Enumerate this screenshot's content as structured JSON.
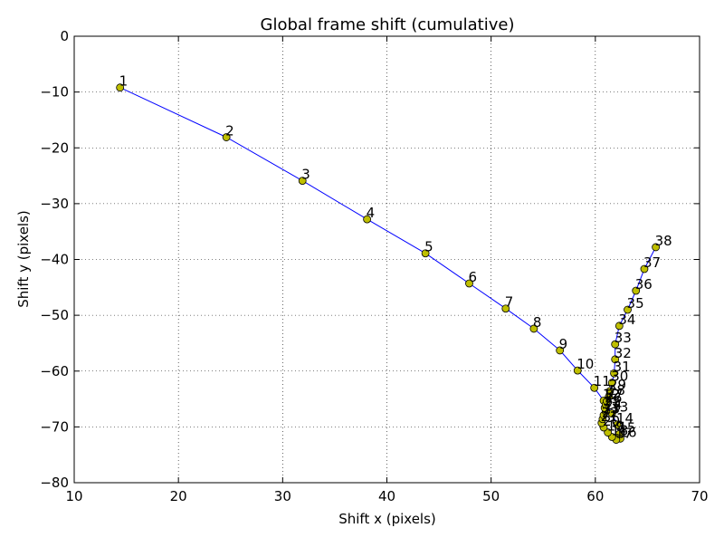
{
  "chart_data": {
    "type": "line",
    "title": "Global frame shift (cumulative)",
    "xlabel": "Shift x (pixels)",
    "ylabel": "Shift y (pixels)",
    "xlim": [
      10,
      70
    ],
    "ylim": [
      -80,
      0
    ],
    "xticks": [
      10,
      20,
      30,
      40,
      50,
      60,
      70
    ],
    "yticks": [
      0,
      -10,
      -20,
      -30,
      -40,
      -50,
      -60,
      -70,
      -80
    ],
    "grid": true,
    "line_color": "#0000ff",
    "marker_color": "#bfbf00",
    "points": [
      {
        "label": "1",
        "x": 14.4,
        "y": -9.2
      },
      {
        "label": "2",
        "x": 24.6,
        "y": -18.1
      },
      {
        "label": "3",
        "x": 31.9,
        "y": -25.9
      },
      {
        "label": "4",
        "x": 38.1,
        "y": -32.8
      },
      {
        "label": "5",
        "x": 43.7,
        "y": -38.9
      },
      {
        "label": "6",
        "x": 47.9,
        "y": -44.3
      },
      {
        "label": "7",
        "x": 51.4,
        "y": -48.8
      },
      {
        "label": "8",
        "x": 54.1,
        "y": -52.4
      },
      {
        "label": "9",
        "x": 56.6,
        "y": -56.3
      },
      {
        "label": "10",
        "x": 58.3,
        "y": -59.9
      },
      {
        "label": "11",
        "x": 59.9,
        "y": -63.0
      },
      {
        "label": "12",
        "x": 60.8,
        "y": -65.3
      },
      {
        "label": "13",
        "x": 61.6,
        "y": -67.6
      },
      {
        "label": "14",
        "x": 62.1,
        "y": -69.6
      },
      {
        "label": "15",
        "x": 62.3,
        "y": -71.3
      },
      {
        "label": "16",
        "x": 62.4,
        "y": -72.1
      },
      {
        "label": "17",
        "x": 62.0,
        "y": -72.3
      },
      {
        "label": "18",
        "x": 61.6,
        "y": -71.8
      },
      {
        "label": "19",
        "x": 61.2,
        "y": -71.0
      },
      {
        "label": "20",
        "x": 60.8,
        "y": -70.1
      },
      {
        "label": "21",
        "x": 60.6,
        "y": -69.3
      },
      {
        "label": "22",
        "x": 60.7,
        "y": -68.6
      },
      {
        "label": "23",
        "x": 60.8,
        "y": -67.9
      },
      {
        "label": "24",
        "x": 61.0,
        "y": -67.2
      },
      {
        "label": "25",
        "x": 60.9,
        "y": -66.6
      },
      {
        "label": "26",
        "x": 61.0,
        "y": -66.0
      },
      {
        "label": "27",
        "x": 61.1,
        "y": -65.4
      },
      {
        "label": "28",
        "x": 61.3,
        "y": -64.6
      },
      {
        "label": "29",
        "x": 61.4,
        "y": -63.6
      },
      {
        "label": "30",
        "x": 61.6,
        "y": -62.1
      },
      {
        "label": "31",
        "x": 61.8,
        "y": -60.4
      },
      {
        "label": "32",
        "x": 61.9,
        "y": -57.9
      },
      {
        "label": "33",
        "x": 61.9,
        "y": -55.2
      },
      {
        "label": "34",
        "x": 62.3,
        "y": -51.9
      },
      {
        "label": "35",
        "x": 63.1,
        "y": -49.0
      },
      {
        "label": "36",
        "x": 63.9,
        "y": -45.6
      },
      {
        "label": "37",
        "x": 64.7,
        "y": -41.7
      },
      {
        "label": "38",
        "x": 65.8,
        "y": -37.8
      }
    ]
  }
}
